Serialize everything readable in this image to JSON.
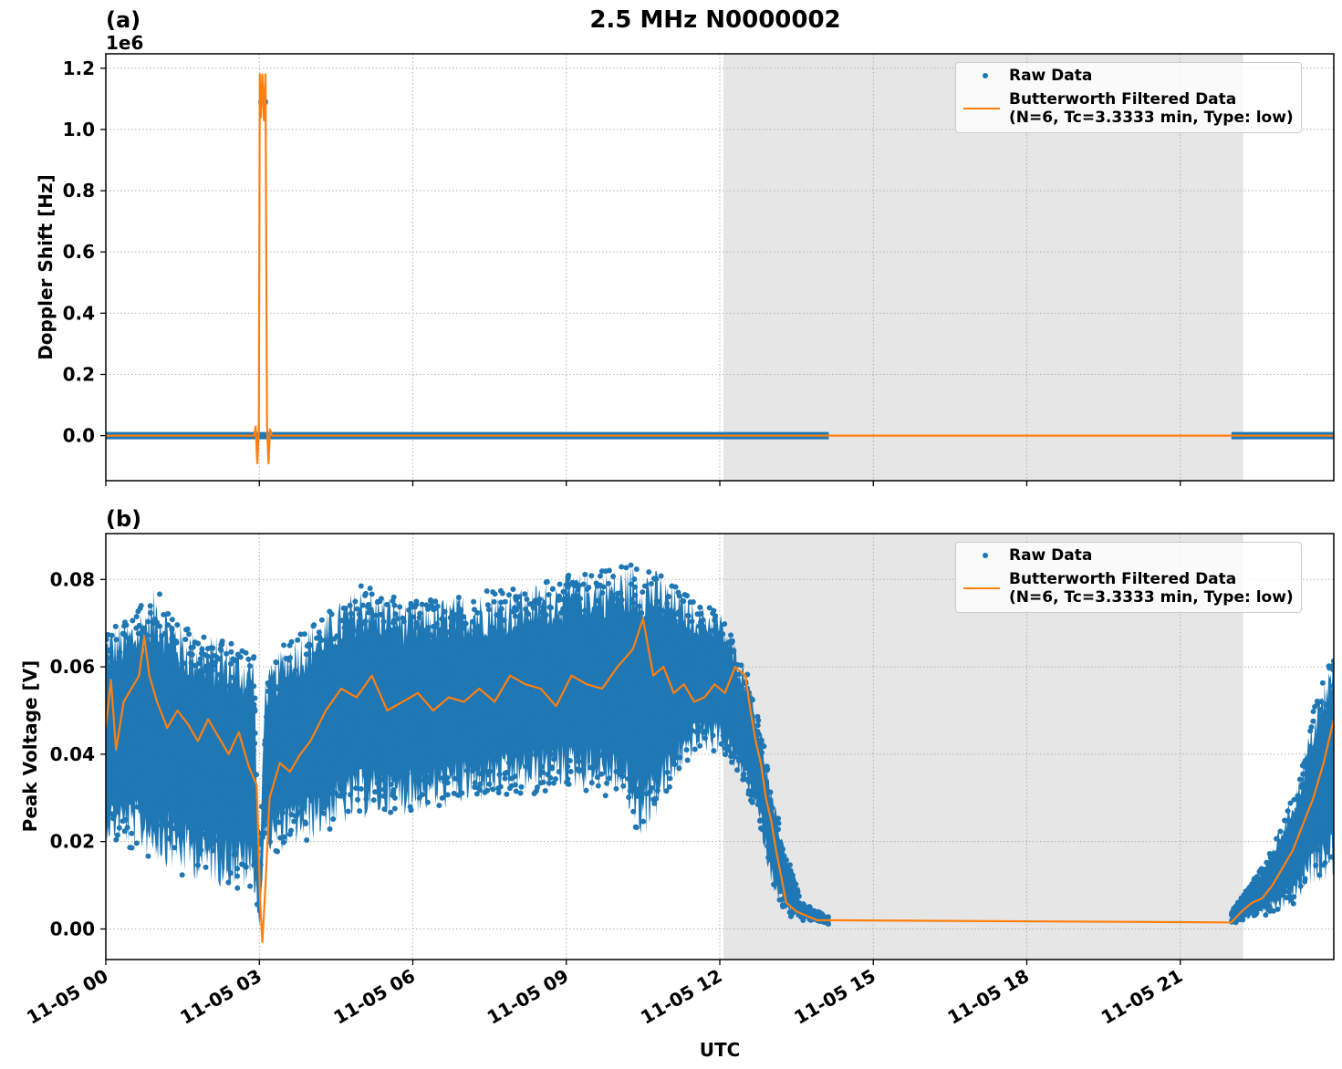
{
  "figure": {
    "suptitle": "2.5 MHz N0000002",
    "xlabel": "UTC"
  },
  "chart_data": [
    {
      "panel": "(a)",
      "type": "line",
      "title": "",
      "xlabel": "",
      "ylabel": "Doppler Shift [Hz]",
      "y_offset_label": "1e6",
      "yscale_multiplier": 1000000,
      "xlim_hours": [
        0,
        24
      ],
      "ylim": [
        -0.147,
        1.247
      ],
      "yticks": [
        0.0,
        0.2,
        0.4,
        0.6,
        0.8,
        1.0,
        1.2
      ],
      "ytick_labels": [
        "0.0",
        "0.2",
        "0.4",
        "0.6",
        "0.8",
        "1.0",
        "1.2"
      ],
      "grid": true,
      "legend_position": "upper right",
      "shaded_region_hours": [
        12.07,
        22.23
      ],
      "series": [
        {
          "name": "Raw Data",
          "style": "scatter",
          "color": "#1f77b4",
          "segments": [
            {
              "x_hours": [
                0.0,
                14.13
              ],
              "y": 0.0
            },
            {
              "x_hours": [
                22.0,
                24.0
              ],
              "y": 0.0
            }
          ],
          "outliers": [
            {
              "x_hours": 3.05,
              "y": 1.09
            },
            {
              "x_hours": 3.1,
              "y": 1.09
            }
          ]
        },
        {
          "name": "Butterworth Filtered Data\n(N=6, Tc=3.3333 min, Type: low)",
          "style": "line",
          "color": "#ff7f0e",
          "x_hours": [
            0,
            2.9,
            2.93,
            2.96,
            2.99,
            3.01,
            3.03,
            3.06,
            3.09,
            3.12,
            3.15,
            3.18,
            3.21,
            3.25,
            24
          ],
          "y": [
            0,
            0,
            0.03,
            -0.09,
            0.02,
            1.18,
            1.04,
            1.18,
            1.03,
            1.18,
            0.03,
            -0.09,
            0.02,
            0,
            0
          ]
        }
      ]
    },
    {
      "panel": "(b)",
      "type": "scatter",
      "title": "",
      "xlabel": "UTC",
      "ylabel": "Peak Voltage [V]",
      "xlim_hours": [
        0,
        24
      ],
      "ylim": [
        -0.007,
        0.0905
      ],
      "yticks": [
        0.0,
        0.02,
        0.04,
        0.06,
        0.08
      ],
      "ytick_labels": [
        "0.00",
        "0.02",
        "0.04",
        "0.06",
        "0.08"
      ],
      "xtick_labels": [
        "11-05 00",
        "11-05 03",
        "11-05 06",
        "11-05 09",
        "11-05 12",
        "11-05 15",
        "11-05 18",
        "11-05 21"
      ],
      "xtick_hours": [
        0,
        3,
        6,
        9,
        12,
        15,
        18,
        21
      ],
      "grid": true,
      "legend_position": "upper right",
      "shaded_region_hours": [
        12.07,
        22.23
      ],
      "series": [
        {
          "name": "Raw Data",
          "style": "scatter",
          "color": "#1f77b4",
          "envelope_hours": [
            0,
            0.5,
            1,
            1.5,
            2,
            2.5,
            2.9,
            3.0,
            3.1,
            3.5,
            4,
            5,
            6,
            7,
            8,
            9,
            10,
            10.5,
            11,
            11.5,
            12,
            12.5,
            12.8,
            13,
            13.3,
            13.6,
            14.13,
            22.0,
            22.3,
            22.7,
            23,
            23.3,
            23.6,
            24
          ],
          "upper": [
            0.069,
            0.072,
            0.079,
            0.07,
            0.068,
            0.066,
            0.064,
            0.01,
            0.058,
            0.066,
            0.07,
            0.079,
            0.075,
            0.077,
            0.078,
            0.081,
            0.083,
            0.085,
            0.08,
            0.075,
            0.073,
            0.06,
            0.047,
            0.032,
            0.018,
            0.006,
            0.003,
            0.004,
            0.009,
            0.016,
            0.025,
            0.034,
            0.05,
            0.064
          ],
          "lower": [
            0.02,
            0.018,
            0.015,
            0.012,
            0.01,
            0.009,
            0.008,
            0.0,
            0.016,
            0.018,
            0.02,
            0.025,
            0.026,
            0.028,
            0.03,
            0.032,
            0.03,
            0.02,
            0.03,
            0.04,
            0.04,
            0.032,
            0.022,
            0.01,
            0.003,
            0.002,
            0.001,
            0.001,
            0.002,
            0.003,
            0.004,
            0.006,
            0.01,
            0.012
          ]
        },
        {
          "name": "Butterworth Filtered Data\n(N=6, Tc=3.3333 min, Type: low)",
          "style": "line",
          "color": "#ff7f0e",
          "x_hours": [
            0,
            0.1,
            0.2,
            0.35,
            0.5,
            0.65,
            0.75,
            0.85,
            1.0,
            1.2,
            1.4,
            1.6,
            1.8,
            2.0,
            2.2,
            2.4,
            2.6,
            2.8,
            2.95,
            3.02,
            3.06,
            3.12,
            3.2,
            3.4,
            3.6,
            3.8,
            4.0,
            4.3,
            4.6,
            4.9,
            5.2,
            5.5,
            5.8,
            6.1,
            6.4,
            6.7,
            7.0,
            7.3,
            7.6,
            7.9,
            8.2,
            8.5,
            8.8,
            9.1,
            9.4,
            9.7,
            10.0,
            10.3,
            10.5,
            10.7,
            10.9,
            11.1,
            11.3,
            11.5,
            11.7,
            11.9,
            12.1,
            12.3,
            12.5,
            12.6,
            12.7,
            12.8,
            12.9,
            13.0,
            13.1,
            13.2,
            13.3,
            13.5,
            13.7,
            13.9,
            14.13,
            22.0,
            22.2,
            22.4,
            22.6,
            22.8,
            23.0,
            23.2,
            23.4,
            23.6,
            23.8,
            24.0
          ],
          "y": [
            0.046,
            0.057,
            0.041,
            0.052,
            0.055,
            0.058,
            0.067,
            0.058,
            0.052,
            0.046,
            0.05,
            0.047,
            0.043,
            0.048,
            0.044,
            0.04,
            0.045,
            0.037,
            0.033,
            0.005,
            -0.003,
            0.01,
            0.03,
            0.038,
            0.036,
            0.04,
            0.043,
            0.05,
            0.055,
            0.053,
            0.058,
            0.05,
            0.052,
            0.054,
            0.05,
            0.053,
            0.052,
            0.055,
            0.052,
            0.058,
            0.056,
            0.055,
            0.051,
            0.058,
            0.056,
            0.055,
            0.06,
            0.064,
            0.071,
            0.058,
            0.06,
            0.054,
            0.056,
            0.052,
            0.053,
            0.056,
            0.054,
            0.06,
            0.058,
            0.05,
            0.043,
            0.038,
            0.03,
            0.025,
            0.018,
            0.012,
            0.006,
            0.004,
            0.003,
            0.002,
            0.002,
            0.0015,
            0.004,
            0.006,
            0.007,
            0.01,
            0.014,
            0.018,
            0.024,
            0.03,
            0.038,
            0.048
          ]
        }
      ]
    }
  ]
}
